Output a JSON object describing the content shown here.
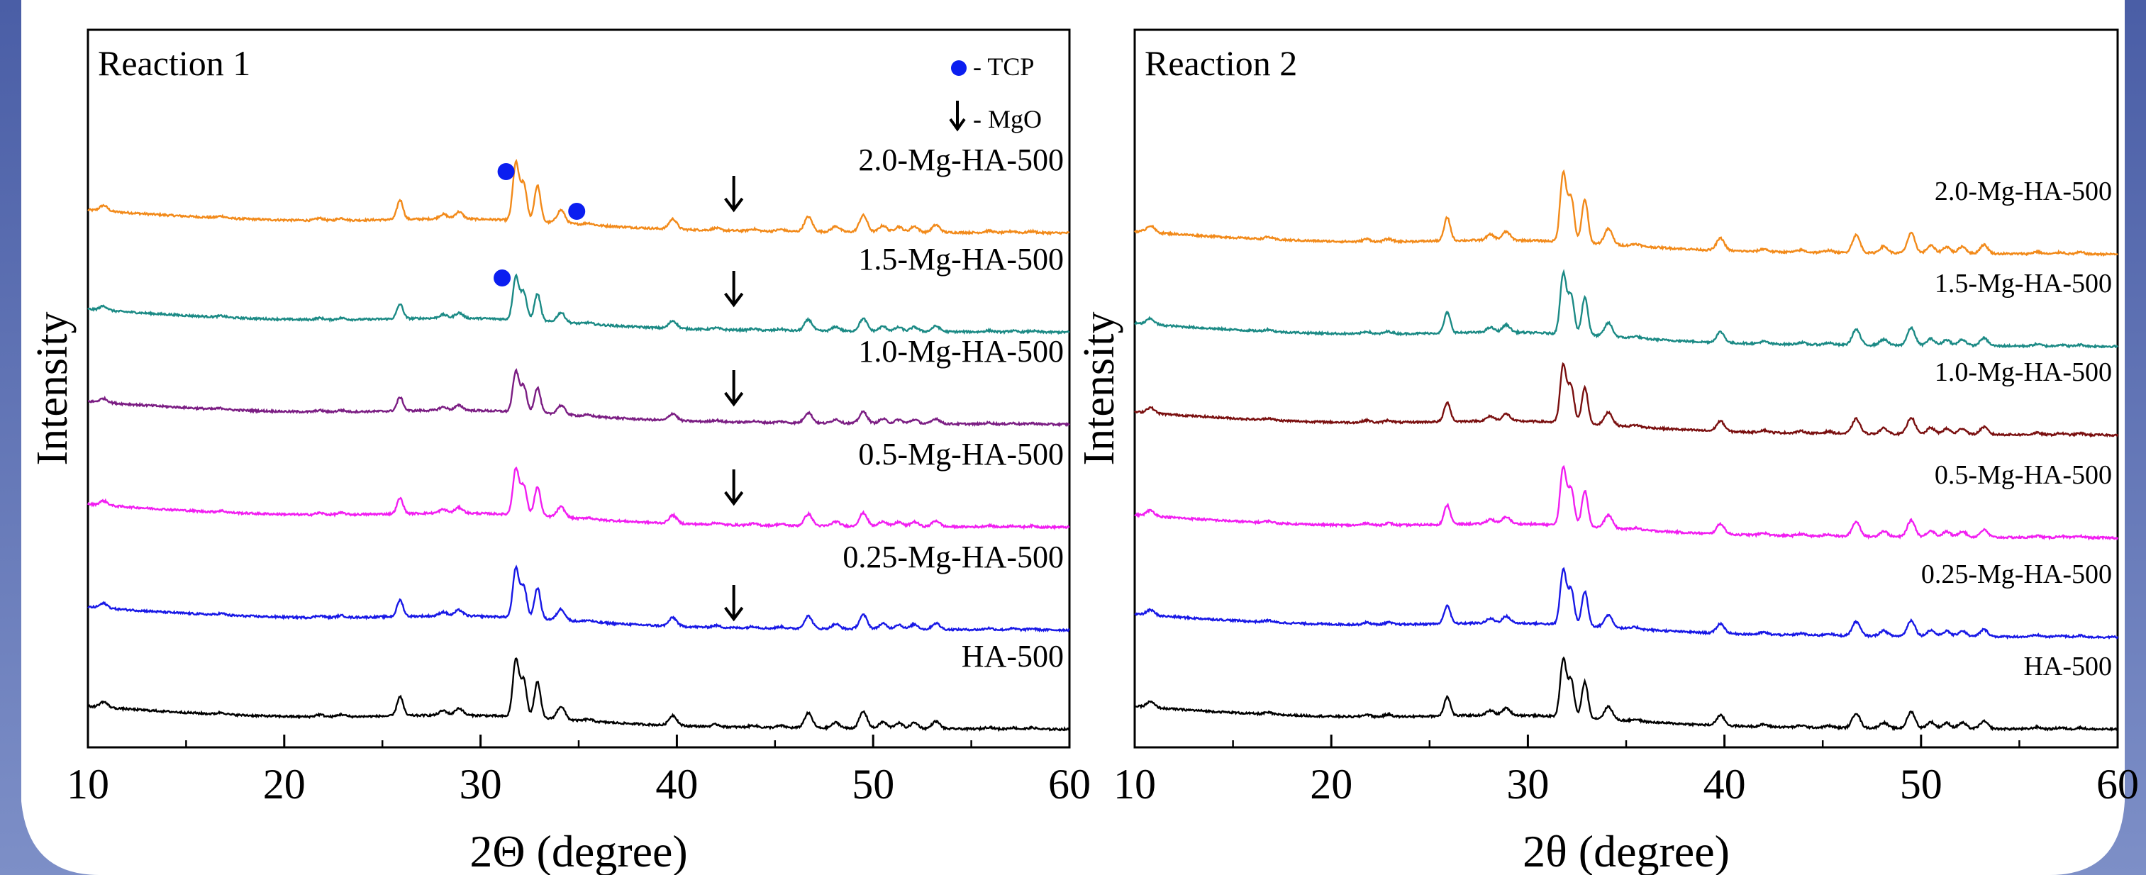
{
  "background_colors": {
    "border": "#3b4f99",
    "border_light": "#7e8fc4",
    "panel": "#ffffff"
  },
  "chart_data": [
    {
      "type": "line",
      "title": "Reaction 1",
      "xlabel": "2Θ (degree)",
      "ylabel": "Intensity",
      "xlim": [
        10,
        60
      ],
      "x_ticks": [
        "10",
        "20",
        "30",
        "40",
        "50",
        "60"
      ],
      "grid": false,
      "legend": [
        {
          "marker": "circle",
          "color": "#0b1ef0",
          "label": "- TCP"
        },
        {
          "marker": "down-arrow",
          "color": "#000000",
          "label": "- MgO"
        }
      ],
      "series": [
        {
          "name": "2.0-Mg-HA-500",
          "color": "#f28a1a",
          "baseline": 5.0
        },
        {
          "name": "1.5-Mg-HA-500",
          "color": "#1b8a85",
          "baseline": 4.0
        },
        {
          "name": "1.0-Mg-HA-500",
          "color": "#7b1d83",
          "baseline": 3.0
        },
        {
          "name": "0.5-Mg-HA-500",
          "color": "#f11ef1",
          "baseline": 2.0
        },
        {
          "name": "0.25-Mg-HA-500",
          "color": "#1818e6",
          "baseline": 1.0
        },
        {
          "name": "HA-500",
          "color": "#000000",
          "baseline": 0.0
        }
      ],
      "tcp_markers": [
        {
          "x": 31.3,
          "series": "2.0-Mg-HA-500"
        },
        {
          "x": 34.9,
          "series": "2.0-Mg-HA-500"
        },
        {
          "x": 31.1,
          "series": "1.5-Mg-HA-500"
        }
      ],
      "mgo_markers": [
        {
          "x": 42.9,
          "series": "2.0-Mg-HA-500"
        },
        {
          "x": 42.9,
          "series": "1.5-Mg-HA-500"
        },
        {
          "x": 42.9,
          "series": "1.0-Mg-HA-500"
        },
        {
          "x": 42.9,
          "series": "0.5-Mg-HA-500"
        },
        {
          "x": 42.9,
          "series": "0.25-Mg-HA-500"
        }
      ]
    },
    {
      "type": "line",
      "title": "Reaction 2",
      "xlabel": "2θ (degree)",
      "ylabel": "Intensity",
      "xlim": [
        10,
        60
      ],
      "x_ticks": [
        "10",
        "20",
        "30",
        "40",
        "50",
        "60"
      ],
      "grid": false,
      "series": [
        {
          "name": "2.0-Mg-HA-500",
          "color": "#f28a1a",
          "baseline": 5.0
        },
        {
          "name": "1.5-Mg-HA-500",
          "color": "#1b8a85",
          "baseline": 4.0
        },
        {
          "name": "1.0-Mg-HA-500",
          "color": "#7a0f0f",
          "baseline": 3.0
        },
        {
          "name": "0.5-Mg-HA-500",
          "color": "#f11ef1",
          "baseline": 2.0
        },
        {
          "name": "0.25-Mg-HA-500",
          "color": "#1818e6",
          "baseline": 1.0
        },
        {
          "name": "HA-500",
          "color": "#000000",
          "baseline": 0.0
        }
      ]
    }
  ],
  "reference_peaks_HA": [
    {
      "x": 10.8,
      "h": 0.3
    },
    {
      "x": 16.8,
      "h": 0.1
    },
    {
      "x": 21.8,
      "h": 0.12
    },
    {
      "x": 22.9,
      "h": 0.12
    },
    {
      "x": 25.9,
      "h": 1.05
    },
    {
      "x": 28.1,
      "h": 0.25
    },
    {
      "x": 28.9,
      "h": 0.38
    },
    {
      "x": 31.8,
      "h": 3.1
    },
    {
      "x": 32.2,
      "h": 2.0
    },
    {
      "x": 32.9,
      "h": 1.95
    },
    {
      "x": 34.1,
      "h": 0.7
    },
    {
      "x": 35.5,
      "h": 0.1
    },
    {
      "x": 39.8,
      "h": 0.55
    },
    {
      "x": 42.0,
      "h": 0.12
    },
    {
      "x": 43.9,
      "h": 0.1
    },
    {
      "x": 45.3,
      "h": 0.1
    },
    {
      "x": 46.7,
      "h": 0.8
    },
    {
      "x": 48.1,
      "h": 0.3
    },
    {
      "x": 49.5,
      "h": 0.9
    },
    {
      "x": 50.5,
      "h": 0.35
    },
    {
      "x": 51.3,
      "h": 0.3
    },
    {
      "x": 52.1,
      "h": 0.32
    },
    {
      "x": 53.2,
      "h": 0.4
    },
    {
      "x": 55.9,
      "h": 0.1
    },
    {
      "x": 57.1,
      "h": 0.08
    },
    {
      "x": 58.1,
      "h": 0.08
    }
  ]
}
